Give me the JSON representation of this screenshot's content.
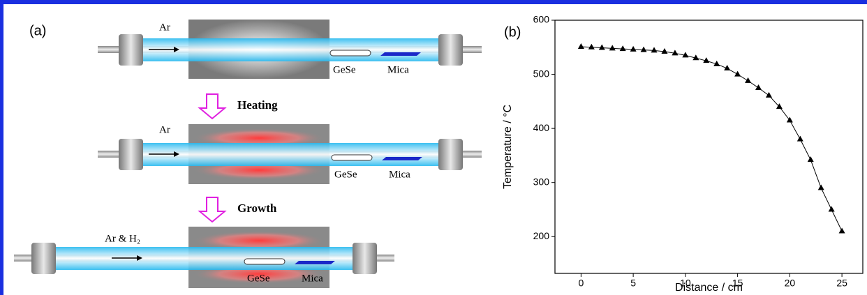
{
  "diagram": {
    "label": "(a)",
    "stages": [
      {
        "gas": "Ar",
        "source": "GeSe",
        "substrate": "Mica"
      },
      {
        "gas": "Ar",
        "source": "GeSe",
        "substrate": "Mica"
      },
      {
        "gas": "Ar & H₂",
        "source": "GeSe",
        "substrate": "Mica"
      }
    ],
    "steps": [
      "Heating",
      "Growth"
    ]
  },
  "chart_data": {
    "type": "line",
    "panel_label": "(b)",
    "x_label": "Distance / cm",
    "y_label": "Temperature / °C",
    "color": "#000000",
    "marker": "triangle",
    "x": [
      0,
      1,
      2,
      3,
      4,
      5,
      6,
      7,
      8,
      9,
      10,
      11,
      12,
      13,
      14,
      15,
      16,
      17,
      18,
      19,
      20,
      21,
      22,
      23,
      24,
      25
    ],
    "values": [
      551,
      550,
      549,
      548,
      547,
      546,
      545,
      544,
      542,
      539,
      535,
      530,
      525,
      519,
      511,
      500,
      488,
      475,
      461,
      440,
      415,
      380,
      342,
      290,
      250,
      210
    ],
    "xlim": [
      -2.5,
      27
    ],
    "ylim": [
      132,
      600
    ],
    "xticks": [
      0,
      5,
      10,
      15,
      20,
      25
    ],
    "yticks": [
      200,
      300,
      400,
      500,
      600
    ]
  }
}
